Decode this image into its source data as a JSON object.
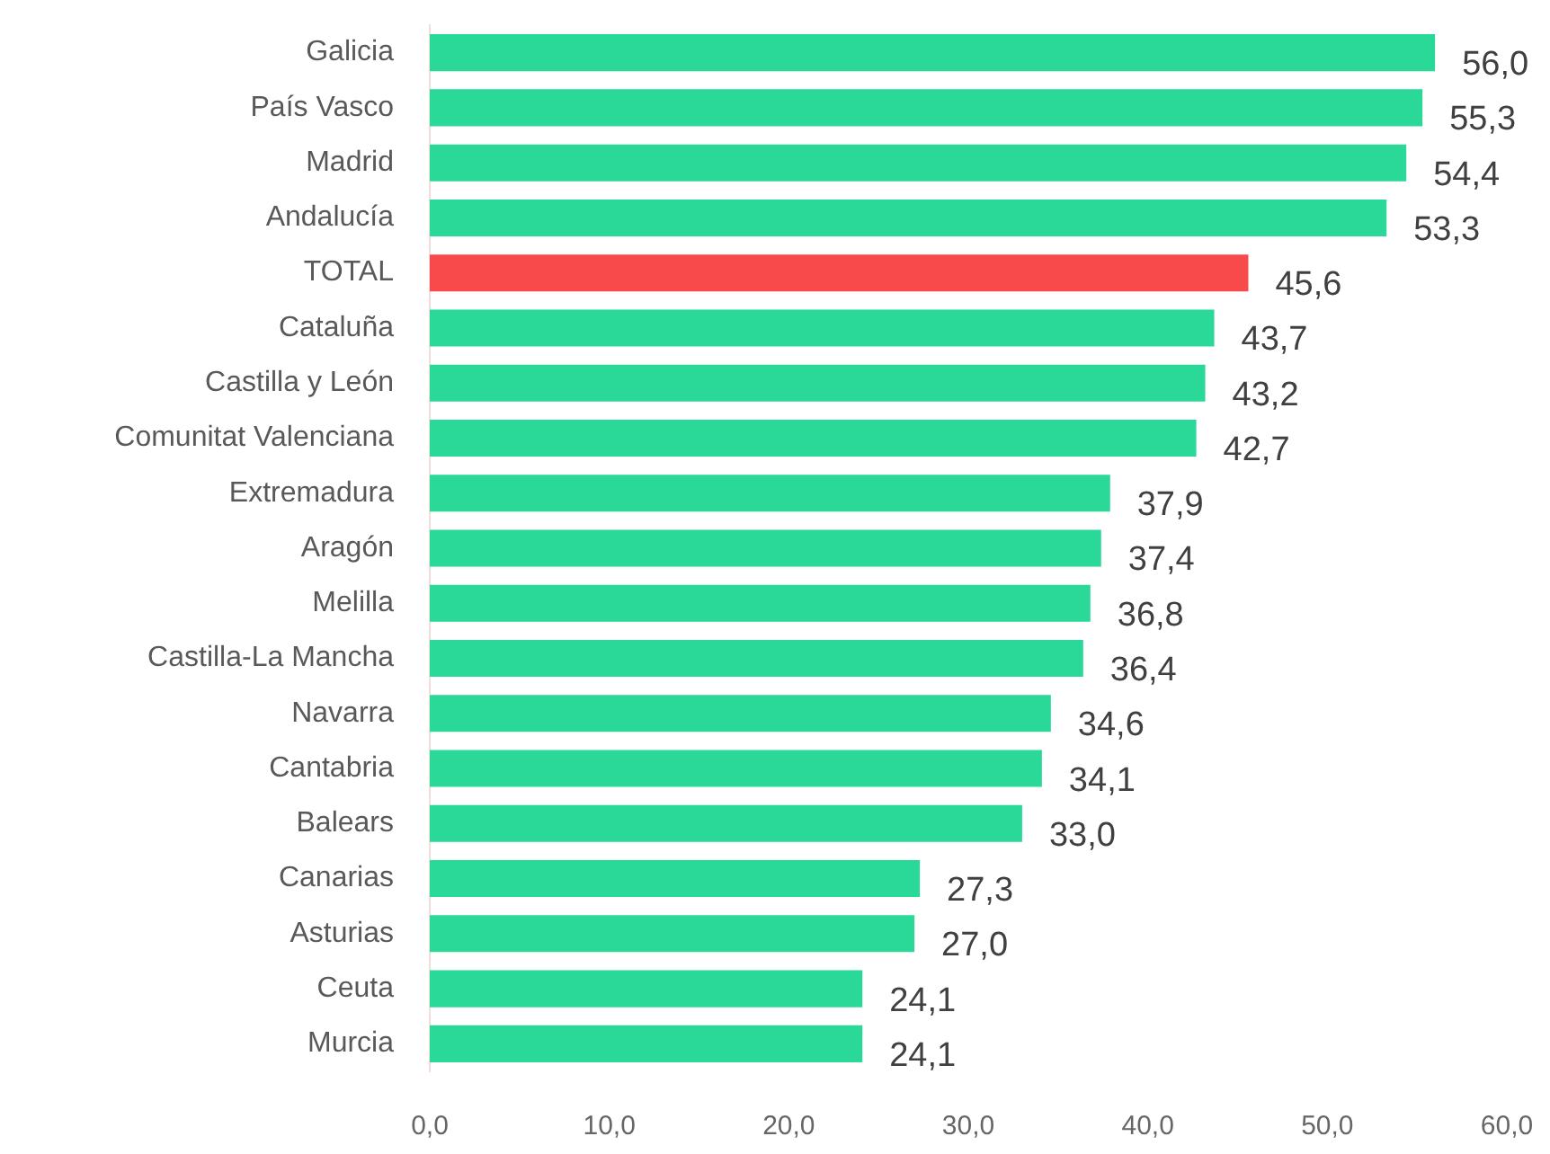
{
  "chart_data": {
    "type": "bar",
    "orientation": "horizontal",
    "categories": [
      "Galicia",
      "País Vasco",
      "Madrid",
      "Andalucía",
      "TOTAL",
      "Cataluña",
      "Castilla y León",
      "Comunitat Valenciana",
      "Extremadura",
      "Aragón",
      "Melilla",
      "Castilla-La Mancha",
      "Navarra",
      "Cantabria",
      "Balears",
      "Canarias",
      "Asturias",
      "Ceuta",
      "Murcia"
    ],
    "values": [
      56.0,
      55.3,
      54.4,
      53.3,
      45.6,
      43.7,
      43.2,
      42.7,
      37.9,
      37.4,
      36.8,
      36.4,
      34.6,
      34.1,
      33.0,
      27.3,
      27.0,
      24.1,
      24.1
    ],
    "colors": [
      "#2ad898",
      "#2ad898",
      "#2ad898",
      "#2ad898",
      "#f84a4a",
      "#2ad898",
      "#2ad898",
      "#2ad898",
      "#2ad898",
      "#2ad898",
      "#2ad898",
      "#2ad898",
      "#2ad898",
      "#2ad898",
      "#2ad898",
      "#2ad898",
      "#2ad898",
      "#2ad898",
      "#2ad898"
    ],
    "value_labels": [
      "56,0",
      "55,3",
      "54,4",
      "53,3",
      "45,6",
      "43,7",
      "43,2",
      "42,7",
      "37,9",
      "37,4",
      "36,8",
      "36,4",
      "34,6",
      "34,1",
      "33,0",
      "27,3",
      "27,0",
      "24,1",
      "24,1"
    ],
    "xlim": [
      0,
      60
    ],
    "xticks": [
      {
        "value": 0,
        "label": "0,0"
      },
      {
        "value": 10,
        "label": "10,0"
      },
      {
        "value": 20,
        "label": "20,0"
      },
      {
        "value": 30,
        "label": "30,0"
      },
      {
        "value": 40,
        "label": "40,0"
      },
      {
        "value": 50,
        "label": "50,0"
      },
      {
        "value": 60,
        "label": "60,0"
      }
    ],
    "grid": false,
    "legend": false
  }
}
